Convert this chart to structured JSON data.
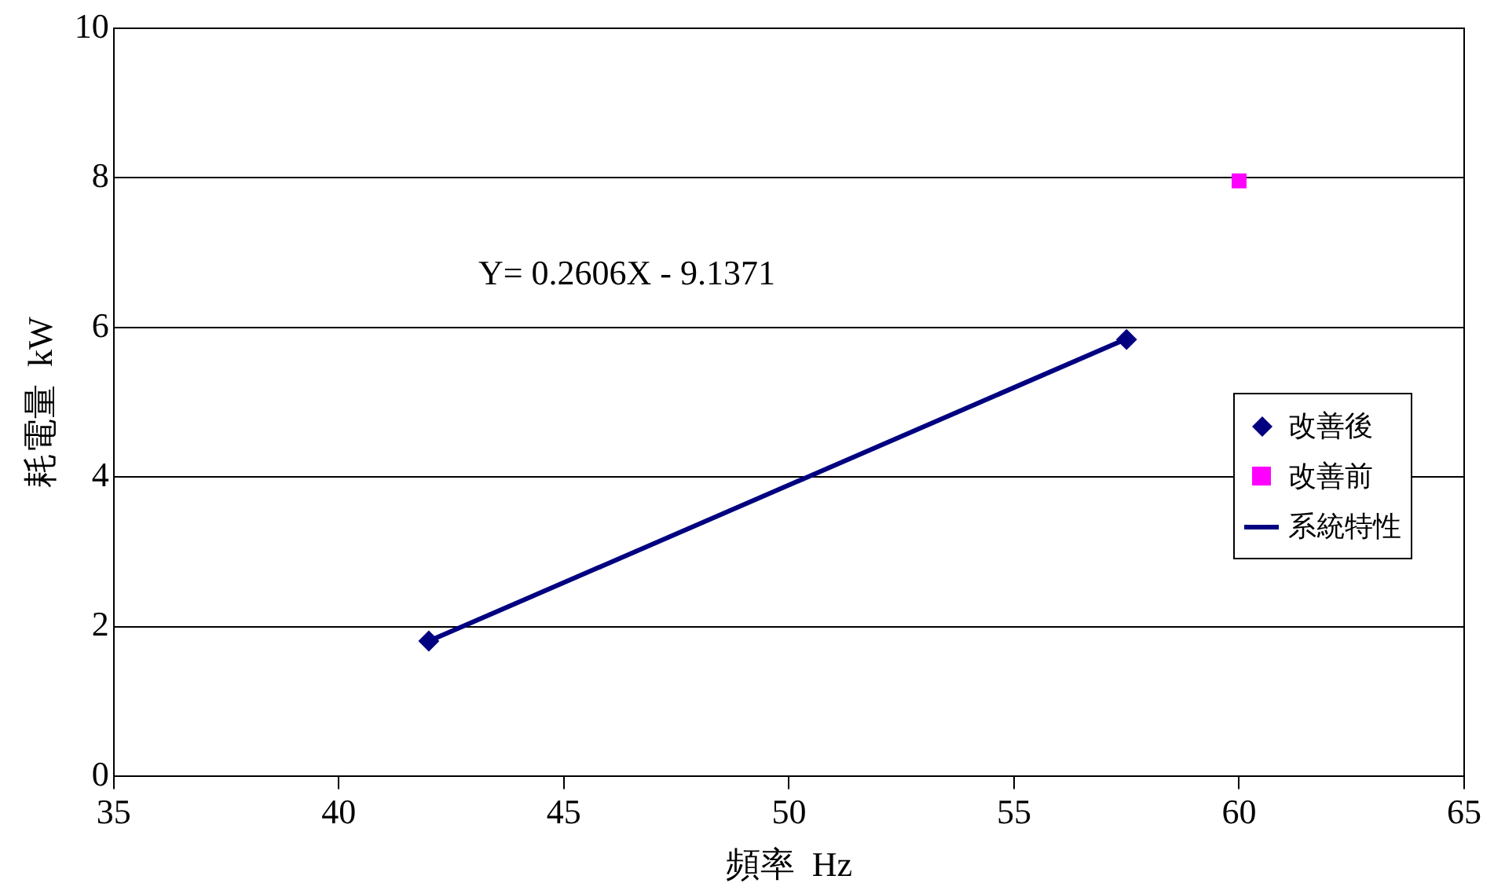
{
  "chart_data": {
    "type": "scatter",
    "xlabel": "頻率  Hz",
    "ylabel": "耗電量  kW",
    "xlim": [
      35,
      65
    ],
    "xticks": [
      35,
      40,
      45,
      50,
      55,
      60,
      65
    ],
    "ylim": [
      0,
      10
    ],
    "yticks": [
      0,
      2,
      4,
      6,
      8,
      10
    ],
    "grid": "y",
    "legend": "right",
    "annotations": [
      "Y= 0.2606X - 9.1371"
    ],
    "series": [
      {
        "name": "改善後",
        "type": "scatter",
        "marker": "diamond",
        "color": "#000080",
        "x": [
          42,
          57.5
        ],
        "values": [
          1.81,
          5.84
        ]
      },
      {
        "name": "改善前",
        "type": "scatter",
        "marker": "square",
        "color": "#ff00ff",
        "x": [
          60
        ],
        "values": [
          7.96
        ]
      },
      {
        "name": "系統特性",
        "type": "line",
        "marker": "none",
        "line_style": "solid",
        "color": "#000080",
        "x": [
          42,
          57.5
        ],
        "values": [
          1.81,
          5.85
        ]
      }
    ]
  }
}
